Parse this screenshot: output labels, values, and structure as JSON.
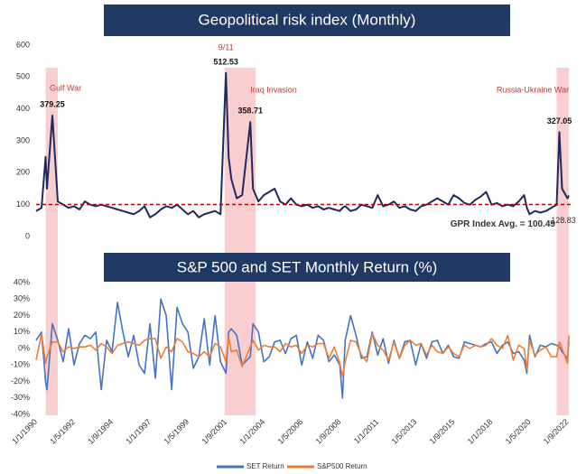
{
  "chart_data": [
    {
      "type": "line",
      "title": "Geopolitical risk index (Monthly)",
      "x": [
        "1/1/1990",
        "1/5/1990",
        "1/8/1990",
        "1/9/1990",
        "1/1/1991",
        "1/5/1991",
        "1/9/1991",
        "1/1/1992",
        "1/5/1992",
        "1/9/1992",
        "1/1/1993",
        "1/5/1993",
        "1/9/1993",
        "1/1/1994",
        "1/5/1994",
        "1/9/1994",
        "1/1/1995",
        "1/5/1995",
        "1/9/1995",
        "1/1/1996",
        "1/5/1996",
        "1/9/1996",
        "1/1/1997",
        "1/5/1997",
        "1/9/1997",
        "1/1/1998",
        "1/5/1998",
        "1/9/1998",
        "1/1/1999",
        "1/5/1999",
        "1/9/1999",
        "1/1/2000",
        "1/5/2000",
        "1/9/2000",
        "1/1/2001",
        "1/5/2001",
        "1/9/2001",
        "1/11/2001",
        "1/1/2002",
        "1/5/2002",
        "1/9/2002",
        "1/3/2003",
        "1/5/2003",
        "1/9/2003",
        "1/1/2004",
        "1/5/2004",
        "1/9/2004",
        "1/1/2005",
        "1/5/2005",
        "1/9/2005",
        "1/1/2006",
        "1/5/2006",
        "1/9/2006",
        "1/1/2007",
        "1/5/2007",
        "1/9/2007",
        "1/1/2008",
        "1/5/2008",
        "1/9/2008",
        "1/11/2008",
        "1/1/2009",
        "1/5/2009",
        "1/9/2009",
        "1/1/2010",
        "1/5/2010",
        "1/9/2010",
        "1/1/2011",
        "1/5/2011",
        "1/9/2011",
        "1/1/2012",
        "1/5/2012",
        "1/9/2012",
        "1/1/2013",
        "1/5/2013",
        "1/9/2013",
        "1/1/2014",
        "1/5/2014",
        "1/9/2014",
        "1/1/2015",
        "1/5/2015",
        "1/9/2015",
        "1/1/2016",
        "1/5/2016",
        "1/9/2016",
        "1/1/2017",
        "1/5/2017",
        "1/9/2017",
        "1/1/2018",
        "1/5/2018",
        "1/9/2018",
        "1/1/2019",
        "1/5/2019",
        "1/9/2019",
        "1/1/2020",
        "1/3/2020",
        "1/5/2020",
        "1/9/2020",
        "1/1/2021",
        "1/5/2021",
        "1/9/2021",
        "1/1/2022",
        "1/3/2022",
        "1/5/2022",
        "1/9/2022",
        "1/10/2022"
      ],
      "series": [
        {
          "name": "GPR",
          "color": "#1f2a5c",
          "values": [
            80,
            90,
            250,
            150,
            379.25,
            110,
            100,
            90,
            95,
            85,
            110,
            100,
            95,
            100,
            95,
            90,
            85,
            80,
            75,
            70,
            80,
            95,
            60,
            70,
            85,
            95,
            90,
            100,
            85,
            70,
            80,
            60,
            70,
            75,
            80,
            70,
            512.53,
            250,
            180,
            120,
            130,
            358.71,
            150,
            110,
            130,
            140,
            150,
            110,
            100,
            120,
            100,
            95,
            100,
            90,
            95,
            85,
            90,
            85,
            80,
            90,
            95,
            80,
            85,
            100,
            95,
            90,
            130,
            95,
            100,
            110,
            90,
            95,
            85,
            80,
            95,
            100,
            110,
            120,
            110,
            100,
            130,
            120,
            105,
            100,
            115,
            125,
            140,
            100,
            105,
            95,
            100,
            95,
            110,
            130,
            90,
            70,
            80,
            75,
            80,
            90,
            100,
            327.05,
            150,
            120,
            128.83
          ],
          "value_labels": [
            null,
            null,
            null,
            null,
            "379.25",
            null,
            null,
            null,
            null,
            null,
            null,
            null,
            null,
            null,
            null,
            null,
            null,
            null,
            null,
            null,
            null,
            null,
            null,
            null,
            null,
            null,
            null,
            null,
            null,
            null,
            null,
            null,
            null,
            null,
            null,
            null,
            "512.53",
            null,
            null,
            null,
            null,
            "358.71",
            null,
            null,
            null,
            null,
            null,
            null,
            null,
            null,
            null,
            null,
            null,
            null,
            null,
            null,
            null,
            null,
            null,
            null,
            null,
            null,
            null,
            null,
            null,
            null,
            null,
            null,
            null,
            null,
            null,
            null,
            null,
            null,
            null,
            null,
            null,
            null,
            null,
            null,
            null,
            null,
            null,
            null,
            null,
            null,
            null,
            null,
            null,
            null,
            null,
            null,
            null,
            null,
            null,
            null,
            null,
            null,
            null,
            null,
            null,
            "327.05",
            null,
            null,
            "128.83"
          ]
        }
      ],
      "ylim": [
        0,
        600
      ],
      "yticks": [
        0,
        100,
        200,
        300,
        400,
        500,
        600
      ],
      "avg": 100.49,
      "avg_label": "GPR Index Avg. = 100.49",
      "avg_color": "#c00000",
      "shades": [
        [
          "1/8/1990",
          "1/5/1991"
        ],
        [
          "1/8/2001",
          "1/7/2003"
        ],
        [
          "1/1/2022",
          "1/10/2022"
        ]
      ],
      "events": [
        {
          "label": "Gulf War",
          "date": "1/9/1990"
        },
        {
          "label": "9/11",
          "date": "1/9/2001"
        },
        {
          "label": "Iraq Invasion",
          "date": "1/3/2003"
        },
        {
          "label": "Russia-Ukraine War",
          "date": "1/3/2022"
        }
      ]
    },
    {
      "type": "line",
      "title": "S&P 500 and SET Monthly Return (%)",
      "x": [
        "1/1/1990",
        "1/5/1990",
        "1/8/1990",
        "1/9/1990",
        "1/1/1991",
        "1/5/1991",
        "1/9/1991",
        "1/1/1992",
        "1/5/1992",
        "1/9/1992",
        "1/1/1993",
        "1/5/1993",
        "1/9/1993",
        "1/1/1994",
        "1/5/1994",
        "1/9/1994",
        "1/1/1995",
        "1/5/1995",
        "1/9/1995",
        "1/1/1996",
        "1/5/1996",
        "1/9/1996",
        "1/1/1997",
        "1/5/1997",
        "1/9/1997",
        "1/1/1998",
        "1/5/1998",
        "1/9/1998",
        "1/1/1999",
        "1/5/1999",
        "1/9/1999",
        "1/1/2000",
        "1/5/2000",
        "1/9/2000",
        "1/1/2001",
        "1/5/2001",
        "1/9/2001",
        "1/11/2001",
        "1/1/2002",
        "1/5/2002",
        "1/9/2002",
        "1/3/2003",
        "1/5/2003",
        "1/9/2003",
        "1/1/2004",
        "1/5/2004",
        "1/9/2004",
        "1/1/2005",
        "1/5/2005",
        "1/9/2005",
        "1/1/2006",
        "1/5/2006",
        "1/9/2006",
        "1/1/2007",
        "1/5/2007",
        "1/9/2007",
        "1/1/2008",
        "1/5/2008",
        "1/9/2008",
        "1/11/2008",
        "1/1/2009",
        "1/5/2009",
        "1/9/2009",
        "1/1/2010",
        "1/5/2010",
        "1/9/2010",
        "1/1/2011",
        "1/5/2011",
        "1/9/2011",
        "1/1/2012",
        "1/5/2012",
        "1/9/2012",
        "1/1/2013",
        "1/5/2013",
        "1/9/2013",
        "1/1/2014",
        "1/5/2014",
        "1/9/2014",
        "1/1/2015",
        "1/5/2015",
        "1/9/2015",
        "1/1/2016",
        "1/5/2016",
        "1/9/2016",
        "1/1/2017",
        "1/5/2017",
        "1/9/2017",
        "1/1/2018",
        "1/5/2018",
        "1/9/2018",
        "1/1/2019",
        "1/5/2019",
        "1/9/2019",
        "1/1/2020",
        "1/3/2020",
        "1/5/2020",
        "1/9/2020",
        "1/1/2021",
        "1/5/2021",
        "1/9/2021",
        "1/1/2022",
        "1/3/2022",
        "1/5/2022",
        "1/9/2022",
        "1/10/2022"
      ],
      "series": [
        {
          "name": "SET Return",
          "color": "#4472c4",
          "values": [
            5,
            10,
            -20,
            -25,
            15,
            5,
            -8,
            12,
            -10,
            3,
            8,
            6,
            10,
            -25,
            5,
            -2,
            28,
            10,
            -5,
            8,
            -10,
            -15,
            15,
            -18,
            30,
            20,
            -25,
            25,
            15,
            10,
            -12,
            -5,
            18,
            -10,
            20,
            -8,
            -15,
            10,
            12,
            8,
            -10,
            -5,
            15,
            10,
            -8,
            -5,
            4,
            5,
            -3,
            6,
            8,
            -10,
            4,
            -6,
            8,
            5,
            -8,
            -4,
            -10,
            -30,
            5,
            20,
            8,
            -6,
            -5,
            10,
            -4,
            6,
            -9,
            5,
            -6,
            4,
            5,
            -10,
            3,
            -6,
            4,
            5,
            -3,
            2,
            -5,
            -6,
            4,
            3,
            2,
            1,
            3,
            4,
            -3,
            2,
            4,
            -3,
            -2,
            -7,
            -15,
            8,
            -5,
            2,
            1,
            3,
            2,
            1,
            -2,
            -6,
            4
          ]
        },
        {
          "name": "S&P500 Return",
          "color": "#ed7d31",
          "values": [
            -7,
            9,
            -9,
            -5,
            4,
            4,
            -2,
            1,
            0,
            1,
            1,
            2,
            -1,
            3,
            1,
            -3,
            2,
            3,
            4,
            3,
            2,
            5,
            6,
            6,
            -6,
            1,
            -2,
            6,
            4,
            -2,
            -3,
            -5,
            -2,
            -5,
            3,
            1,
            -8,
            7,
            -2,
            -1,
            -11,
            1,
            5,
            -1,
            2,
            1,
            1,
            -2,
            3,
            1,
            2,
            -3,
            2,
            1,
            3,
            3,
            -6,
            1,
            -9,
            -17,
            -8,
            5,
            4,
            -4,
            -8,
            9,
            2,
            -1,
            -7,
            4,
            -6,
            2,
            5,
            2,
            3,
            -4,
            2,
            -2,
            -3,
            1,
            -3,
            -5,
            2,
            0,
            2,
            1,
            2,
            6,
            2,
            0,
            8,
            -7,
            2,
            0,
            -13,
            5,
            -4,
            -1,
            1,
            -5,
            -5,
            4,
            0,
            -9,
            8
          ]
        }
      ],
      "ylim": [
        -40,
        40
      ],
      "yticks": [
        {
          "value": -40,
          "label": "-40%"
        },
        {
          "value": -30,
          "label": "-30%"
        },
        {
          "value": -20,
          "label": "-20%"
        },
        {
          "value": -10,
          "label": "-10%"
        },
        {
          "value": 0,
          "label": "0%"
        },
        {
          "value": 10,
          "label": "10%"
        },
        {
          "value": 20,
          "label": "20%"
        },
        {
          "value": 30,
          "label": "30%"
        },
        {
          "value": 40,
          "label": "40%"
        }
      ],
      "xticks": [
        "1/1/1990",
        "1/5/1992",
        "1/9/1994",
        "1/1/1997",
        "1/5/1999",
        "1/9/2001",
        "1/1/2004",
        "1/5/2006",
        "1/9/2008",
        "1/1/2011",
        "1/5/2013",
        "1/9/2015",
        "1/1/2018",
        "1/5/2020",
        "1/9/2022"
      ],
      "legend": "bottom"
    }
  ]
}
